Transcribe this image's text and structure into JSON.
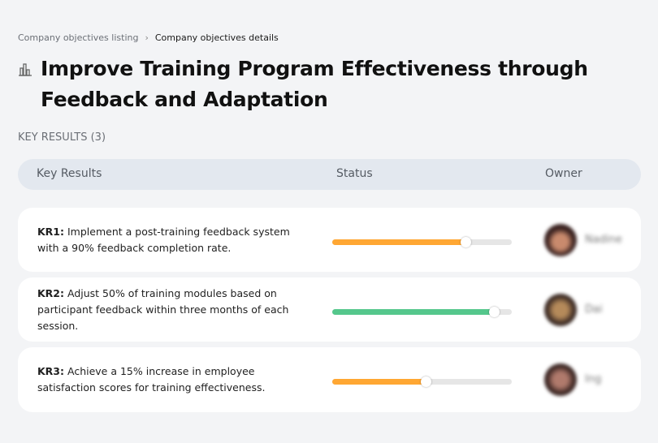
{
  "breadcrumb": {
    "parent": "Company objectives listing",
    "separator": "›",
    "current": "Company objectives details"
  },
  "page": {
    "title": "Improve Training Program Effectiveness through Feedback and Adaptation",
    "icon": "chart-bars-icon"
  },
  "key_results_label": "KEY RESULTS (3)",
  "table": {
    "headers": {
      "key_results": "Key Results",
      "status": "Status",
      "owner": "Owner"
    }
  },
  "rows": [
    {
      "id": "KR1:",
      "text": "Implement a post-training feedback system with a 90% feedback completion rate.",
      "progress": 0.74,
      "color": "#ffa733",
      "owner": "Nadine"
    },
    {
      "id": "KR2:",
      "text": "Adjust 50% of training modules based on participant feedback within three months of each session.",
      "progress": 0.9,
      "color": "#55c78c",
      "owner": "Dai"
    },
    {
      "id": "KR3:",
      "text": "Achieve a 15% increase in employee satisfaction scores for training effectiveness.",
      "progress": 0.52,
      "color": "#ffa733",
      "owner": "Ing"
    }
  ]
}
